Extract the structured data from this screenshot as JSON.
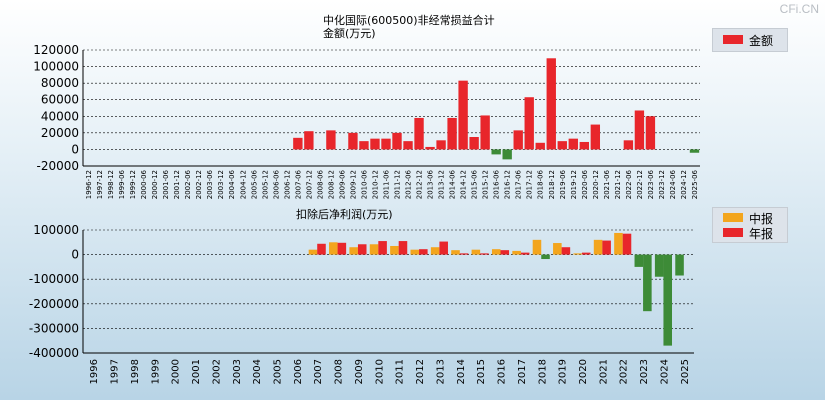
{
  "title": "中化国际(600500)非经常损益合计",
  "watermark": "CFi.CN",
  "colors": {
    "positive": "#e8262b",
    "negative": "#3d8b37",
    "interim": "#f3a51d",
    "annual": "#e8262b",
    "grid": "#000000"
  },
  "chart_data": [
    {
      "type": "bar",
      "title": "金额(万元)",
      "legend": [
        {
          "label": "金额"
        }
      ],
      "ylim": [
        -20000,
        120000
      ],
      "yticks": [
        120000,
        100000,
        80000,
        60000,
        40000,
        20000,
        0,
        -20000
      ],
      "categories": [
        "1996-12",
        "1997-12",
        "1998-12",
        "1999-06",
        "1999-12",
        "2000-06",
        "2000-12",
        "2001-06",
        "2001-12",
        "2002-06",
        "2002-12",
        "2003-06",
        "2003-12",
        "2004-06",
        "2004-12",
        "2005-06",
        "2005-12",
        "2006-06",
        "2006-12",
        "2007-06",
        "2007-12",
        "2008-06",
        "2008-12",
        "2009-06",
        "2009-12",
        "2010-06",
        "2010-12",
        "2011-06",
        "2011-12",
        "2012-06",
        "2012-12",
        "2013-06",
        "2013-12",
        "2014-06",
        "2014-12",
        "2015-06",
        "2015-12",
        "2016-06",
        "2016-12",
        "2017-06",
        "2017-12",
        "2018-06",
        "2018-12",
        "2019-06",
        "2019-12",
        "2020-06",
        "2020-12",
        "2021-06",
        "2021-12",
        "2022-06",
        "2022-12",
        "2023-06",
        "2023-12",
        "2024-06",
        "2024-12",
        "2025-06"
      ],
      "values": [
        0,
        0,
        0,
        0,
        0,
        0,
        0,
        0,
        0,
        0,
        0,
        0,
        0,
        0,
        0,
        0,
        0,
        0,
        0,
        14000,
        22000,
        0,
        23000,
        0,
        20000,
        10000,
        13000,
        13000,
        20000,
        10000,
        38000,
        3000,
        11000,
        38000,
        83000,
        15000,
        41000,
        -6000,
        -12000,
        23000,
        63000,
        8000,
        110000,
        10000,
        13000,
        9000,
        30000,
        0,
        0,
        11000,
        47000,
        40000,
        0,
        0,
        0,
        -4000
      ]
    },
    {
      "type": "bar",
      "title": "扣除后净利润(万元)",
      "legend": [
        {
          "label": "中报"
        },
        {
          "label": "年报"
        }
      ],
      "ylim": [
        -400000,
        100000
      ],
      "yticks": [
        100000,
        0,
        -100000,
        -200000,
        -300000,
        -400000
      ],
      "categories": [
        "1996",
        "1997",
        "1998",
        "1999",
        "2000",
        "2001",
        "2002",
        "2003",
        "2004",
        "2005",
        "2006",
        "2007",
        "2008",
        "2009",
        "2010",
        "2011",
        "2012",
        "2013",
        "2014",
        "2015",
        "2016",
        "2017",
        "2018",
        "2019",
        "2020",
        "2021",
        "2022",
        "2023",
        "2024",
        "2025"
      ],
      "series": [
        {
          "name": "中报",
          "values": [
            0,
            0,
            0,
            0,
            0,
            0,
            0,
            0,
            0,
            0,
            0,
            20000,
            50000,
            30000,
            42000,
            35000,
            20000,
            30000,
            18000,
            20000,
            22000,
            15000,
            60000,
            47000,
            5000,
            60000,
            88000,
            -50000,
            -90000,
            -85000
          ]
        },
        {
          "name": "年报",
          "values": [
            0,
            0,
            0,
            0,
            0,
            0,
            0,
            0,
            0,
            0,
            0,
            44000,
            48000,
            42000,
            55000,
            55000,
            22000,
            53000,
            5000,
            5000,
            18000,
            8000,
            -18000,
            30000,
            8000,
            57000,
            85000,
            -230000,
            -370000,
            null
          ]
        }
      ]
    }
  ]
}
